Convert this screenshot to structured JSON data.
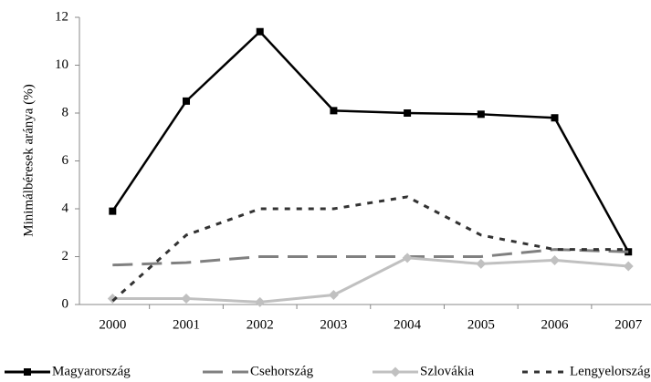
{
  "chart_data": {
    "type": "line",
    "y_label": "Minimálbéresek aránya (%)",
    "categories": [
      "2000",
      "2001",
      "2002",
      "2003",
      "2004",
      "2005",
      "2006",
      "2007"
    ],
    "ylim": [
      0,
      12
    ],
    "yticks": [
      0,
      2,
      4,
      6,
      8,
      10,
      12
    ],
    "series": [
      {
        "name": "Magyarország",
        "color": "#000000",
        "dash": "none",
        "marker": "square",
        "values": [
          3.9,
          8.5,
          11.4,
          8.1,
          8.0,
          7.95,
          7.8,
          2.2
        ]
      },
      {
        "name": "Csehország",
        "color": "#808080",
        "dash": "22,10",
        "marker": "none",
        "values": [
          1.65,
          1.75,
          2.0,
          2.0,
          2.0,
          2.0,
          2.3,
          2.2
        ]
      },
      {
        "name": "Szlovákia",
        "color": "#c0c0c0",
        "dash": "none",
        "marker": "diamond",
        "values": [
          0.25,
          0.25,
          0.1,
          0.4,
          1.95,
          1.7,
          1.85,
          1.6
        ]
      },
      {
        "name": "Lengyelország",
        "color": "#333333",
        "dash": "6,7",
        "marker": "none",
        "values": [
          0.15,
          2.9,
          4.0,
          4.0,
          4.5,
          2.9,
          2.3,
          2.3
        ]
      }
    ]
  }
}
